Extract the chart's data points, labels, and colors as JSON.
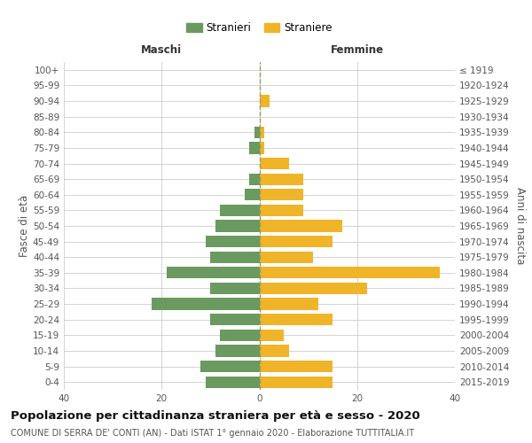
{
  "age_groups": [
    "0-4",
    "5-9",
    "10-14",
    "15-19",
    "20-24",
    "25-29",
    "30-34",
    "35-39",
    "40-44",
    "45-49",
    "50-54",
    "55-59",
    "60-64",
    "65-69",
    "70-74",
    "75-79",
    "80-84",
    "85-89",
    "90-94",
    "95-99",
    "100+"
  ],
  "birth_years": [
    "2015-2019",
    "2010-2014",
    "2005-2009",
    "2000-2004",
    "1995-1999",
    "1990-1994",
    "1985-1989",
    "1980-1984",
    "1975-1979",
    "1970-1974",
    "1965-1969",
    "1960-1964",
    "1955-1959",
    "1950-1954",
    "1945-1949",
    "1940-1944",
    "1935-1939",
    "1930-1934",
    "1925-1929",
    "1920-1924",
    "≤ 1919"
  ],
  "maschi": [
    11,
    12,
    9,
    8,
    10,
    22,
    10,
    19,
    10,
    11,
    9,
    8,
    3,
    2,
    0,
    2,
    1,
    0,
    0,
    0,
    0
  ],
  "femmine": [
    15,
    15,
    6,
    5,
    15,
    12,
    22,
    37,
    11,
    15,
    17,
    9,
    9,
    9,
    6,
    1,
    1,
    0,
    2,
    0,
    0
  ],
  "maschi_color": "#6a9a5f",
  "femmine_color": "#f0b429",
  "background_color": "#ffffff",
  "grid_color": "#cccccc",
  "title": "Popolazione per cittadinanza straniera per età e sesso - 2020",
  "subtitle": "COMUNE DI SERRA DE' CONTI (AN) - Dati ISTAT 1° gennaio 2020 - Elaborazione TUTTITALIA.IT",
  "xlabel_left": "Maschi",
  "xlabel_right": "Femmine",
  "ylabel_left": "Fasce di età",
  "ylabel_right": "Anni di nascita",
  "legend_stranieri": "Stranieri",
  "legend_straniere": "Straniere",
  "xlim": 40,
  "title_fontsize": 9.5,
  "subtitle_fontsize": 7,
  "label_fontsize": 8.5,
  "tick_fontsize": 7.5
}
